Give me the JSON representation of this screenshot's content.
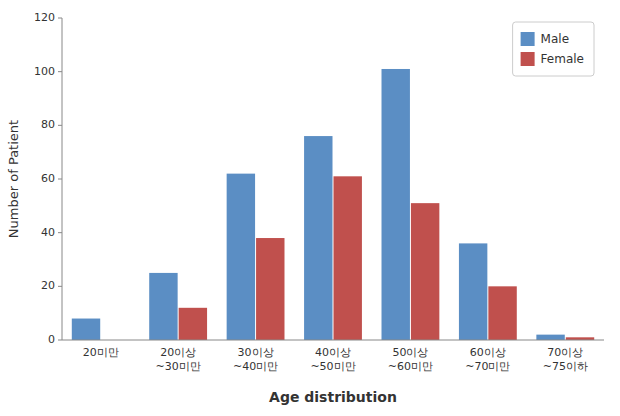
{
  "chart_data": {
    "type": "bar",
    "categories": [
      "20미만",
      "20이상\n~30미만",
      "30이상\n~40미만",
      "40이상\n~50미만",
      "50이상\n~60미만",
      "60이상\n~70미만",
      "70이상\n~75이하"
    ],
    "series": [
      {
        "name": "Male",
        "color": "#5B8EC4",
        "values": [
          8,
          25,
          62,
          76,
          101,
          36,
          2
        ]
      },
      {
        "name": "Female",
        "color": "#C0504D",
        "values": [
          0,
          12,
          38,
          61,
          51,
          20,
          1
        ]
      }
    ],
    "xlabel": "Age distribution",
    "ylabel": "Number of Patient",
    "ylim": [
      0,
      120
    ],
    "yticks": [
      0,
      20,
      40,
      60,
      80,
      100,
      120
    ],
    "grid": false,
    "legend": "upper right"
  }
}
